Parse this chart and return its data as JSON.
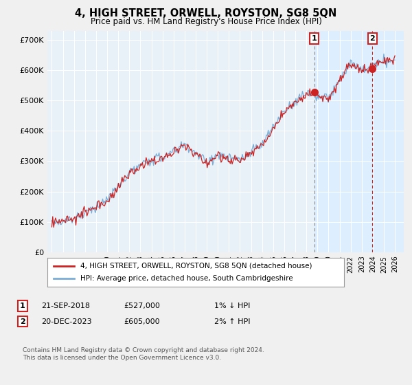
{
  "title": "4, HIGH STREET, ORWELL, ROYSTON, SG8 5QN",
  "subtitle": "Price paid vs. HM Land Registry's House Price Index (HPI)",
  "ylabel_ticks": [
    "£0",
    "£100K",
    "£200K",
    "£300K",
    "£400K",
    "£500K",
    "£600K",
    "£700K"
  ],
  "ytick_values": [
    0,
    100000,
    200000,
    300000,
    400000,
    500000,
    600000,
    700000
  ],
  "ylim": [
    0,
    730000
  ],
  "xlim_start": 1994.6,
  "xlim_end": 2026.8,
  "hpi_color": "#7aaed6",
  "price_color": "#cc2222",
  "shade_color": "#ddeeff",
  "marker1_date_float": 2018.72,
  "marker1_value": 527000,
  "marker2_date_float": 2023.97,
  "marker2_value": 605000,
  "legend_line1": "4, HIGH STREET, ORWELL, ROYSTON, SG8 5QN (detached house)",
  "legend_line2": "HPI: Average price, detached house, South Cambridgeshire",
  "ann1_date": "21-SEP-2018",
  "ann1_price": "£527,000",
  "ann1_hpi": "1% ↓ HPI",
  "ann2_date": "20-DEC-2023",
  "ann2_price": "£605,000",
  "ann2_hpi": "2% ↑ HPI",
  "footer": "Contains HM Land Registry data © Crown copyright and database right 2024.\nThis data is licensed under the Open Government Licence v3.0.",
  "background_color": "#f0f0f0",
  "plot_bg_color": "#e8f0f8",
  "grid_color": "#ffffff",
  "vline1_color": "#888888",
  "vline2_color": "#cc2222",
  "seed": 123
}
